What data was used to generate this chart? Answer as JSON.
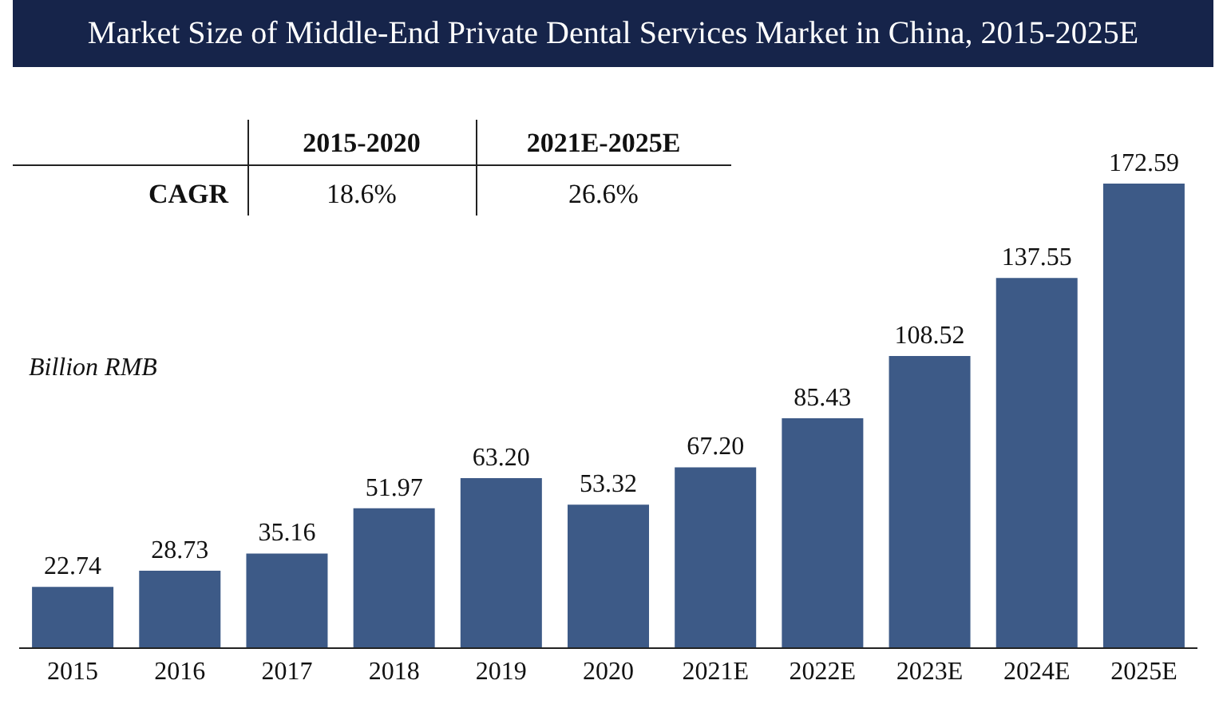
{
  "chart_data": {
    "type": "bar",
    "title": "Market Size of Middle-End Private Dental Services Market in China, 2015-2025E",
    "ylabel": "Billion RMB",
    "categories": [
      "2015",
      "2016",
      "2017",
      "2018",
      "2019",
      "2020",
      "2021E",
      "2022E",
      "2023E",
      "2024E",
      "2025E"
    ],
    "values": [
      22.74,
      28.73,
      35.16,
      51.97,
      63.2,
      53.32,
      67.2,
      85.43,
      108.52,
      137.55,
      172.59
    ],
    "value_labels": [
      "22.74",
      "28.73",
      "35.16",
      "51.97",
      "63.20",
      "53.32",
      "67.20",
      "85.43",
      "108.52",
      "137.55",
      "172.59"
    ],
    "color": "#3d5a87",
    "annotations": [
      "2015-2020",
      "2021E-2025E",
      "CAGR",
      "18.6%",
      "26.6%"
    ]
  }
}
